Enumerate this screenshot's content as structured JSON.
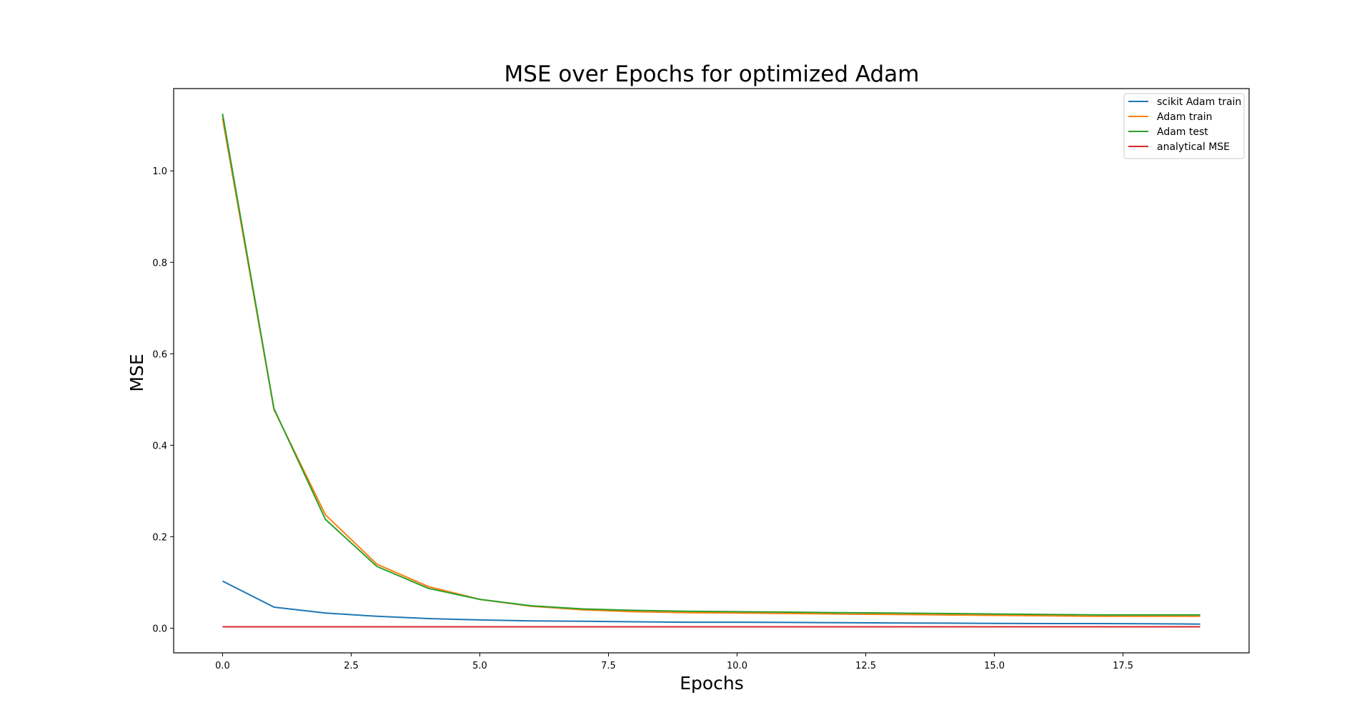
{
  "chart_data": {
    "type": "line",
    "title": "MSE over Epochs for optimized Adam",
    "xlabel": "Epochs",
    "ylabel": "MSE",
    "xlim": [
      -0.95,
      19.95
    ],
    "ylim": [
      -0.054,
      1.18
    ],
    "xticks": [
      0.0,
      2.5,
      5.0,
      7.5,
      10.0,
      12.5,
      15.0,
      17.5
    ],
    "xtick_labels": [
      "0.0",
      "2.5",
      "5.0",
      "7.5",
      "10.0",
      "12.5",
      "15.0",
      "17.5"
    ],
    "yticks": [
      0.0,
      0.2,
      0.4,
      0.6,
      0.8,
      1.0
    ],
    "ytick_labels": [
      "0.0",
      "0.2",
      "0.4",
      "0.6",
      "0.8",
      "1.0"
    ],
    "grid": false,
    "legend_position": "top-right",
    "x": [
      0,
      1,
      2,
      3,
      4,
      5,
      6,
      7,
      8,
      9,
      10,
      11,
      12,
      13,
      14,
      15,
      16,
      17,
      18,
      19
    ],
    "series": [
      {
        "name": "scikit Adam train",
        "color": "#1f77b4",
        "values": [
          0.103,
          0.046,
          0.033,
          0.026,
          0.021,
          0.018,
          0.016,
          0.015,
          0.014,
          0.013,
          0.013,
          0.0125,
          0.012,
          0.0115,
          0.011,
          0.0105,
          0.01,
          0.01,
          0.0095,
          0.009
        ]
      },
      {
        "name": "Adam train",
        "color": "#ff7f0e",
        "values": [
          1.115,
          0.478,
          0.248,
          0.14,
          0.091,
          0.063,
          0.048,
          0.04,
          0.036,
          0.034,
          0.033,
          0.032,
          0.031,
          0.03,
          0.029,
          0.028,
          0.027,
          0.026,
          0.026,
          0.026
        ]
      },
      {
        "name": "Adam test",
        "color": "#2ca02c",
        "values": [
          1.125,
          0.48,
          0.238,
          0.135,
          0.087,
          0.063,
          0.049,
          0.042,
          0.039,
          0.037,
          0.036,
          0.035,
          0.034,
          0.033,
          0.032,
          0.031,
          0.03,
          0.029,
          0.029,
          0.029
        ]
      },
      {
        "name": "analytical MSE",
        "color": "#d62728",
        "values": [
          0.003,
          0.003,
          0.003,
          0.003,
          0.003,
          0.003,
          0.003,
          0.003,
          0.003,
          0.003,
          0.003,
          0.003,
          0.003,
          0.003,
          0.003,
          0.003,
          0.003,
          0.003,
          0.003,
          0.003
        ]
      }
    ]
  }
}
